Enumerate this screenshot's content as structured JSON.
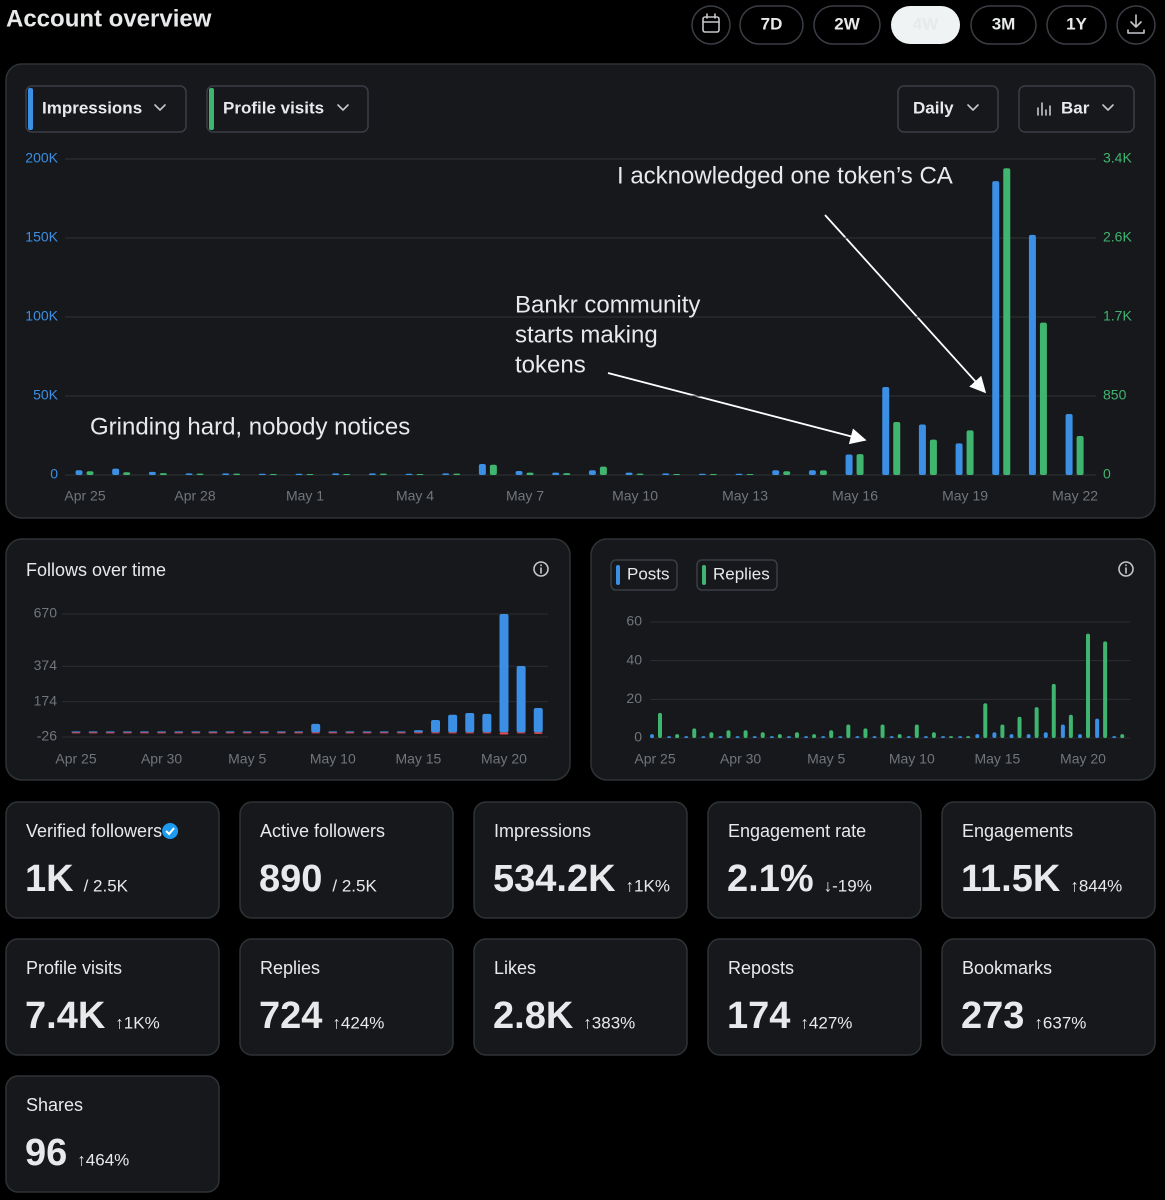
{
  "header": {
    "title": "Account overview",
    "ranges": [
      "7D",
      "2W",
      "4W",
      "3M",
      "1Y"
    ],
    "selected": "4W"
  },
  "chart_data": [
    {
      "type": "bar",
      "interval": "Daily",
      "view": "Bar",
      "categories": [
        "Apr 25",
        null,
        null,
        "Apr 28",
        null,
        null,
        "May 1",
        null,
        null,
        "May 4",
        null,
        null,
        "May 7",
        null,
        null,
        "May 10",
        null,
        null,
        "May 13",
        null,
        null,
        "May 16",
        null,
        null,
        "May 19",
        null,
        null,
        "May 22"
      ],
      "series": [
        {
          "name": "Impressions",
          "color": "#3b8fe4",
          "values": [
            3000,
            4000,
            2000,
            1000,
            1000,
            800,
            800,
            1000,
            1000,
            800,
            1000,
            7000,
            2500,
            1500,
            3000,
            1500,
            1000,
            800,
            800,
            3000,
            3000,
            13000,
            55700,
            32000,
            20000,
            186000,
            152000,
            38600
          ]
        },
        {
          "name": "Profile visits",
          "color": "#3fb56f",
          "axis": "y2",
          "values": [
            40,
            30,
            20,
            15,
            15,
            10,
            10,
            10,
            15,
            10,
            15,
            110,
            25,
            20,
            90,
            15,
            10,
            10,
            10,
            40,
            50,
            225,
            570,
            380,
            480,
            3300,
            1640,
            420
          ]
        }
      ],
      "ylim": [
        0,
        200000
      ],
      "yticks": [
        0,
        {
          "value": 50000,
          "label": "50K"
        },
        {
          "value": 100000,
          "label": "100K"
        },
        {
          "value": 150000,
          "label": "150K"
        },
        {
          "value": 200000,
          "label": "200K"
        }
      ],
      "y2lim": [
        0,
        3400
      ],
      "y2ticks": [
        0,
        850,
        {
          "value": 1700,
          "label": "1.7K"
        },
        {
          "value": 2550,
          "label": "2.6K"
        },
        {
          "value": 3400,
          "label": "3.4K"
        }
      ],
      "grid": true,
      "annotations": [
        {
          "lines": [
            "Grinding hard, nobody notices"
          ]
        },
        {
          "lines": [
            "Bankr community",
            "starts making",
            "tokens"
          ]
        },
        {
          "lines": [
            "I acknowledged one token’s CA"
          ]
        }
      ]
    },
    {
      "type": "bar",
      "title": "Follows over time",
      "barmode": "overlay",
      "categories": [
        "Apr 25",
        null,
        null,
        null,
        null,
        "Apr 30",
        null,
        null,
        null,
        null,
        "May 5",
        null,
        null,
        null,
        null,
        "May 10",
        null,
        null,
        null,
        null,
        "May 15",
        null,
        null,
        null,
        null,
        "May 20",
        null,
        null
      ],
      "series": [
        {
          "color": "#3b8fe4",
          "values": [
            5,
            4,
            3,
            3,
            3,
            3,
            4,
            3,
            3,
            3,
            3,
            4,
            3,
            3,
            48,
            5,
            4,
            3,
            3,
            4,
            12,
            70,
            100,
            110,
            105,
            670,
            376,
            138
          ]
        },
        {
          "color": "#e5484d",
          "values": [
            -3,
            -2,
            -2,
            -3,
            -2,
            -2,
            -3,
            -2,
            -2,
            -3,
            -2,
            -2,
            -3,
            -2,
            -3,
            -2,
            -2,
            -3,
            -2,
            -2,
            -3,
            -3,
            -4,
            -3,
            -4,
            -12,
            -4,
            -8
          ]
        }
      ],
      "ylim": [
        -26,
        670
      ],
      "yticks": [
        -26,
        174,
        374,
        670
      ],
      "grid": true
    },
    {
      "type": "bar",
      "categories": [
        "Apr 25",
        null,
        null,
        null,
        null,
        "Apr 30",
        null,
        null,
        null,
        null,
        "May 5",
        null,
        null,
        null,
        null,
        "May 10",
        null,
        null,
        null,
        null,
        "May 15",
        null,
        null,
        null,
        null,
        "May 20",
        null,
        null
      ],
      "series": [
        {
          "name": "Posts",
          "color": "#3b8fe4",
          "values": [
            2,
            1,
            1,
            1,
            1,
            1,
            1,
            1,
            1,
            1,
            1,
            1,
            1,
            1,
            1,
            1,
            1,
            1,
            1,
            2,
            3,
            2,
            2,
            3,
            7,
            2,
            10,
            1
          ]
        },
        {
          "name": "Replies",
          "color": "#3fb56f",
          "values": [
            13,
            2,
            5,
            3,
            4,
            4,
            3,
            2,
            3,
            2,
            4,
            7,
            5,
            7,
            2,
            7,
            3,
            1,
            1,
            18,
            7,
            11,
            16,
            28,
            12,
            54,
            50,
            2
          ]
        }
      ],
      "ylim": [
        0,
        60
      ],
      "yticks": [
        0,
        20,
        40,
        60
      ],
      "grid": true
    }
  ],
  "cards": [
    {
      "label": "Verified followers",
      "verified": true,
      "value": "1K",
      "total": "/ 2.5K"
    },
    {
      "label": "Active followers",
      "value": "890",
      "total": "/ 2.5K"
    },
    {
      "label": "Impressions",
      "value": "534.2K",
      "change": "↑1K%",
      "trend": "up"
    },
    {
      "label": "Engagement rate",
      "value": "2.1%",
      "change": "↓-19%",
      "trend": "down"
    },
    {
      "label": "Engagements",
      "value": "11.5K",
      "change": "↑844%",
      "trend": "up"
    },
    {
      "label": "Profile visits",
      "value": "7.4K",
      "change": "↑1K%",
      "trend": "up"
    },
    {
      "label": "Replies",
      "value": "724",
      "change": "↑424%",
      "trend": "up"
    },
    {
      "label": "Likes",
      "value": "2.8K",
      "change": "↑383%",
      "trend": "up"
    },
    {
      "label": "Reposts",
      "value": "174",
      "change": "↑427%",
      "trend": "up"
    },
    {
      "label": "Bookmarks",
      "value": "273",
      "change": "↑637%",
      "trend": "up"
    },
    {
      "label": "Shares",
      "value": "96",
      "change": "↑464%",
      "trend": "up"
    }
  ]
}
